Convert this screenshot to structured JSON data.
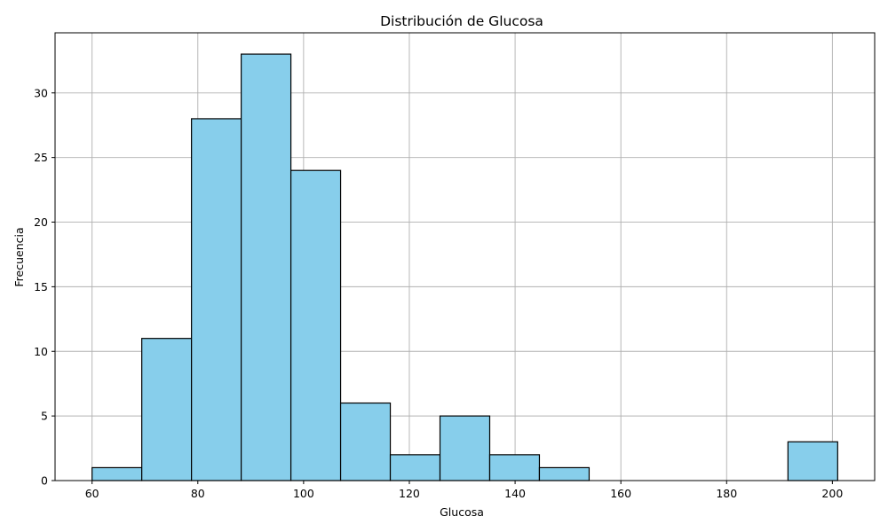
{
  "chart_data": {
    "type": "bar",
    "title": "Distribución de Glucosa",
    "xlabel": "Glucosa",
    "ylabel": "Frecuencia",
    "xlim": [
      53,
      208
    ],
    "ylim": [
      0,
      34.65
    ],
    "grid": true,
    "bar_color": "#87ceeb",
    "edge_color": "#000000",
    "x_ticks": [
      60,
      80,
      100,
      120,
      140,
      160,
      180,
      200
    ],
    "y_ticks": [
      0,
      5,
      10,
      15,
      20,
      25,
      30
    ],
    "bins": [
      {
        "start": 60.0,
        "end": 69.4,
        "count": 1
      },
      {
        "start": 69.4,
        "end": 78.8,
        "count": 11
      },
      {
        "start": 78.8,
        "end": 88.2,
        "count": 28
      },
      {
        "start": 88.2,
        "end": 97.6,
        "count": 33
      },
      {
        "start": 97.6,
        "end": 107.0,
        "count": 24
      },
      {
        "start": 107.0,
        "end": 116.4,
        "count": 6
      },
      {
        "start": 116.4,
        "end": 125.8,
        "count": 2
      },
      {
        "start": 125.8,
        "end": 135.2,
        "count": 5
      },
      {
        "start": 135.2,
        "end": 144.6,
        "count": 2
      },
      {
        "start": 144.6,
        "end": 154.0,
        "count": 1
      },
      {
        "start": 154.0,
        "end": 163.4,
        "count": 0
      },
      {
        "start": 163.4,
        "end": 172.8,
        "count": 0
      },
      {
        "start": 172.8,
        "end": 182.2,
        "count": 0
      },
      {
        "start": 182.2,
        "end": 191.6,
        "count": 0
      },
      {
        "start": 191.6,
        "end": 201.0,
        "count": 3
      }
    ]
  }
}
